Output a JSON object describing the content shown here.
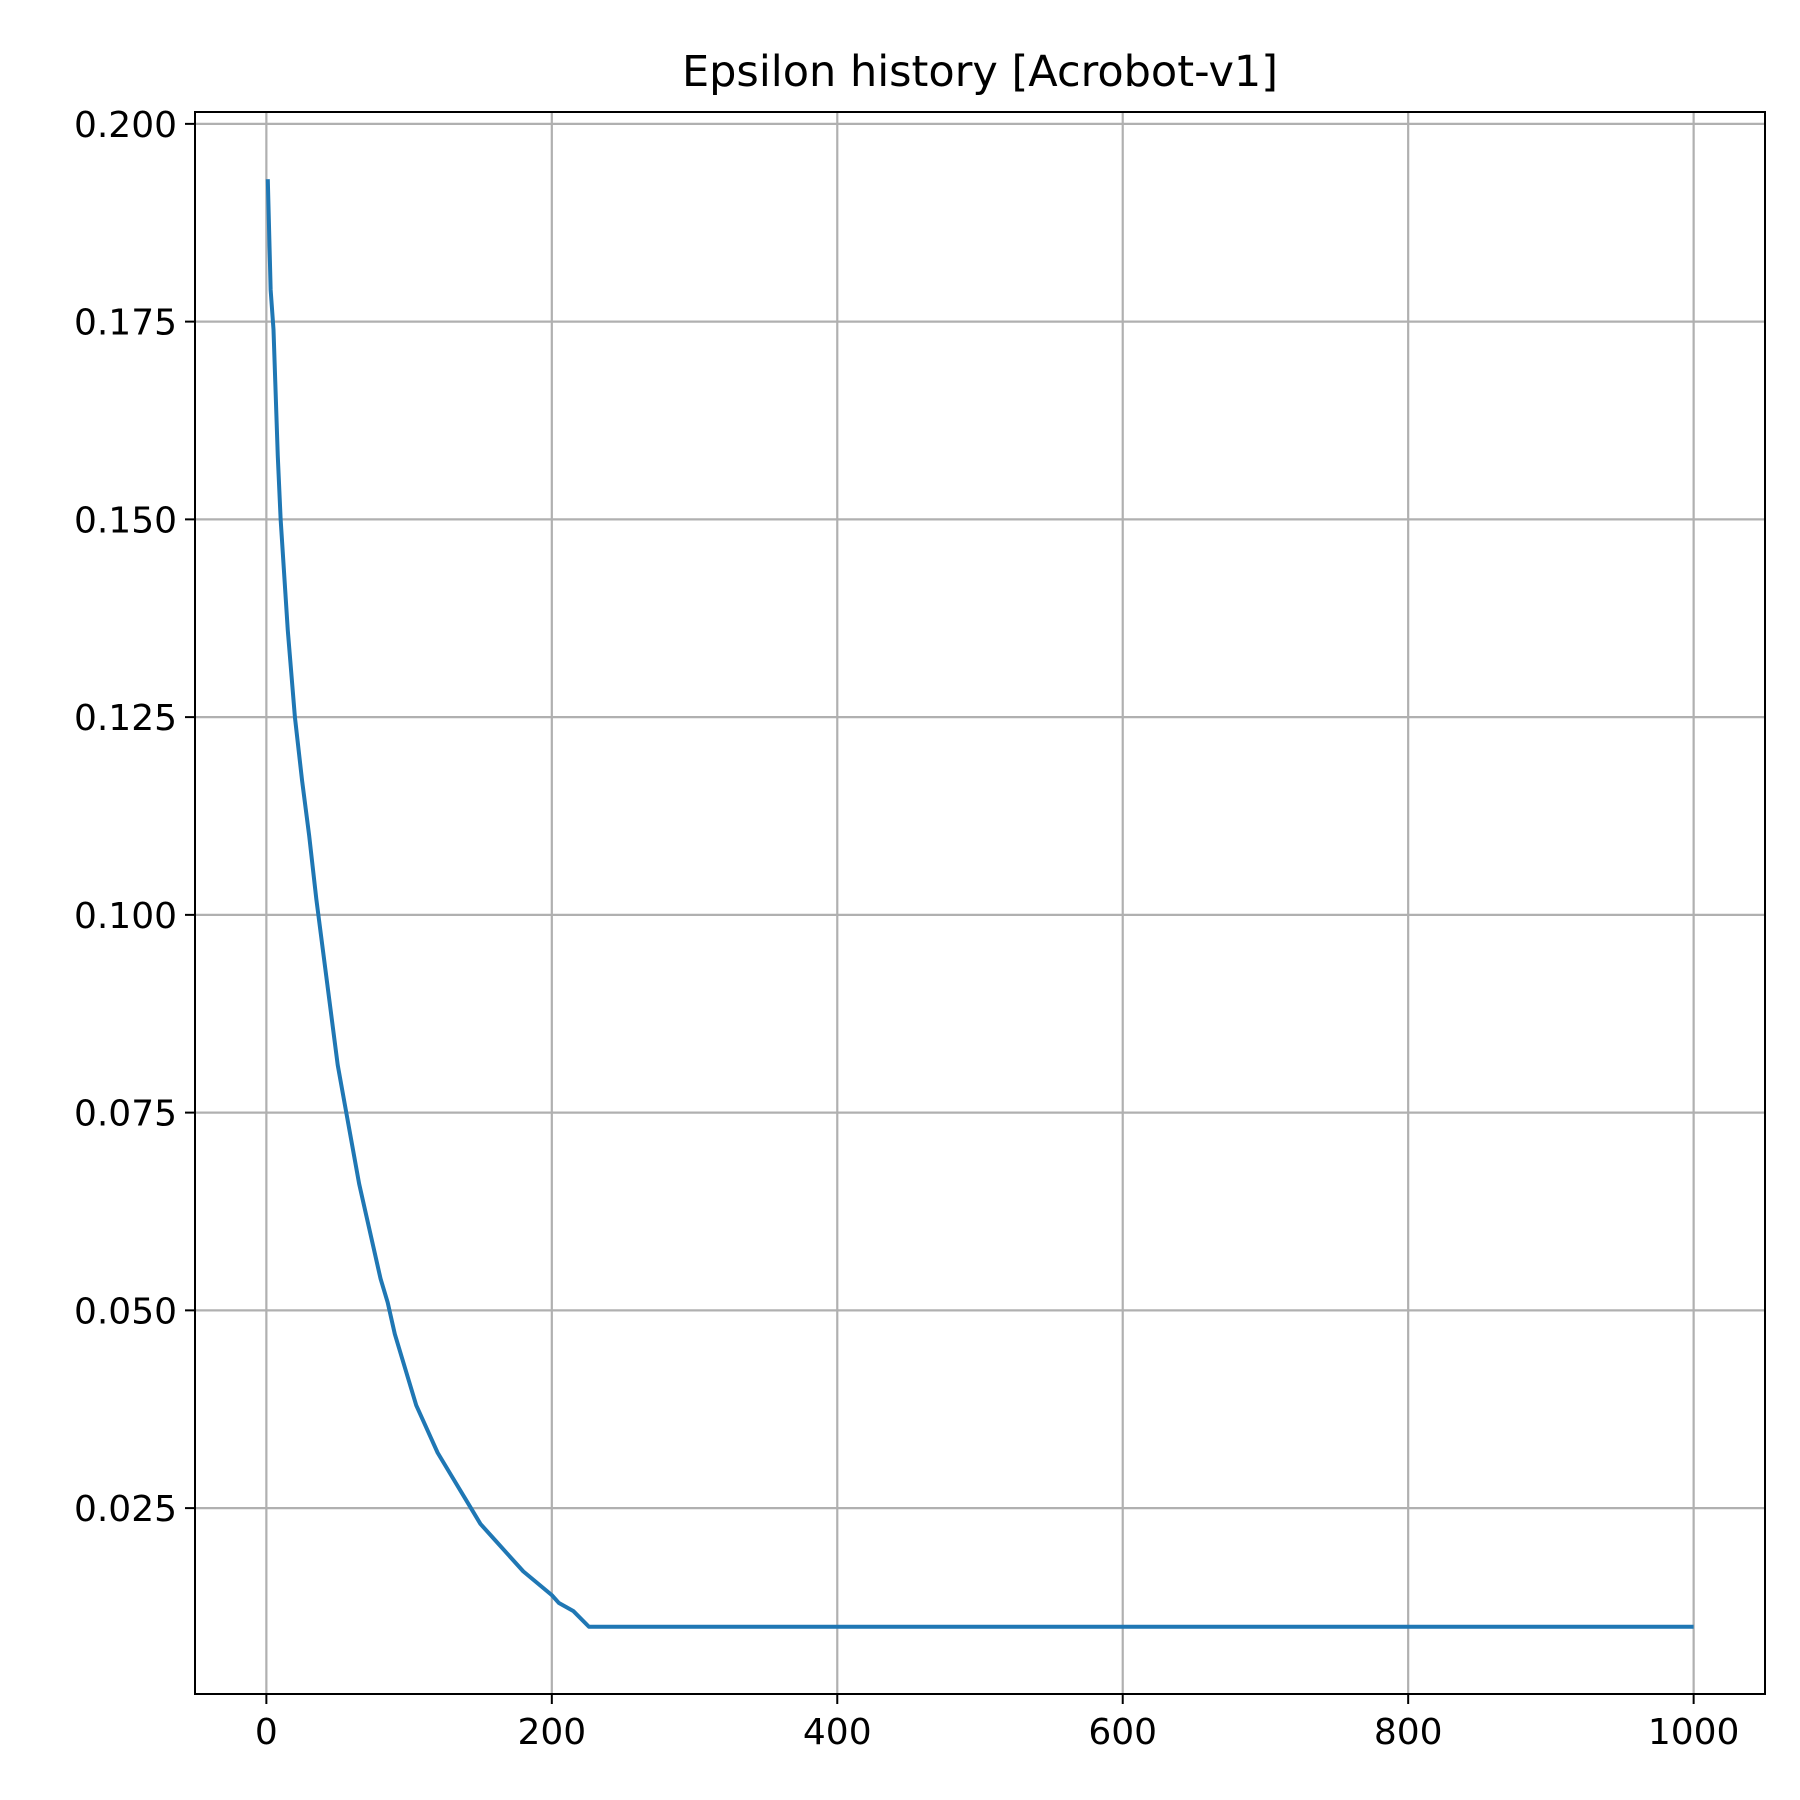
{
  "chart_data": {
    "type": "line",
    "title": "Epsilon history [Acrobot-v1]",
    "xlabel": "",
    "ylabel": "",
    "xlim": [
      -50,
      1050
    ],
    "ylim": [
      0.0015,
      0.2015
    ],
    "xticks": [
      0,
      200,
      400,
      600,
      800,
      1000
    ],
    "xtick_labels": [
      "0",
      "200",
      "400",
      "600",
      "800",
      "1000"
    ],
    "yticks": [
      0.025,
      0.05,
      0.075,
      0.1,
      0.125,
      0.15,
      0.175,
      0.2
    ],
    "ytick_labels": [
      "0.025",
      "0.050",
      "0.075",
      "0.100",
      "0.125",
      "0.150",
      "0.175",
      "0.200"
    ],
    "grid": true,
    "legend": "none",
    "series": [
      {
        "color": "#1f77b4",
        "x": [
          1,
          3,
          5,
          8,
          10,
          15,
          20,
          25,
          30,
          35,
          40,
          45,
          50,
          55,
          60,
          65,
          70,
          75,
          80,
          85,
          90,
          95,
          100,
          105,
          110,
          115,
          120,
          130,
          140,
          150,
          160,
          170,
          180,
          190,
          200,
          205,
          210,
          215,
          226,
          300,
          400,
          500,
          600,
          700,
          800,
          900,
          1000
        ],
        "y": [
          0.193,
          0.179,
          0.174,
          0.158,
          0.15,
          0.136,
          0.125,
          0.117,
          0.11,
          0.102,
          0.095,
          0.088,
          0.081,
          0.076,
          0.071,
          0.066,
          0.062,
          0.058,
          0.054,
          0.051,
          0.047,
          0.044,
          0.041,
          0.038,
          0.036,
          0.034,
          0.032,
          0.029,
          0.026,
          0.023,
          0.021,
          0.019,
          0.017,
          0.0155,
          0.014,
          0.013,
          0.0125,
          0.012,
          0.01,
          0.01,
          0.01,
          0.01,
          0.01,
          0.01,
          0.01,
          0.01,
          0.01
        ]
      }
    ]
  }
}
